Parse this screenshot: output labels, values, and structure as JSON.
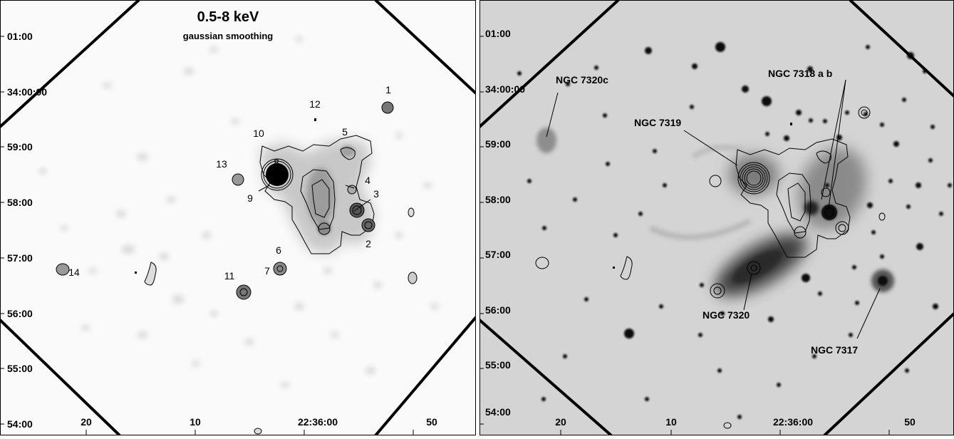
{
  "left_panel": {
    "title": "0.5-8 keV",
    "subtitle": "gaussian smoothing",
    "y_ticks": [
      "01:00",
      "34:00:00",
      "59:00",
      "58:00",
      "57:00",
      "56:00",
      "55:00",
      "54:00"
    ],
    "x_ticks": [
      "20",
      "10",
      "22:36:00",
      "50"
    ],
    "sources": [
      "1",
      "2",
      "3",
      "4",
      "5",
      "6",
      "7",
      "8",
      "9",
      "10",
      "11",
      "12",
      "13",
      "14"
    ]
  },
  "right_panel": {
    "y_ticks": [
      "01:00",
      "34:00:00",
      "59:00",
      "58:00",
      "57:00",
      "56:00",
      "55:00",
      "54:00"
    ],
    "x_ticks": [
      "20",
      "10",
      "22:36:00",
      "50"
    ],
    "galaxies": [
      "NGC 7320c",
      "NGC 7319",
      "NGC 7318 a b",
      "NGC 7320",
      "NGC 7317"
    ]
  },
  "colors": {
    "background_xray": "#fafafa",
    "background_optical": "#d4d4d4",
    "contour": "#000000"
  }
}
